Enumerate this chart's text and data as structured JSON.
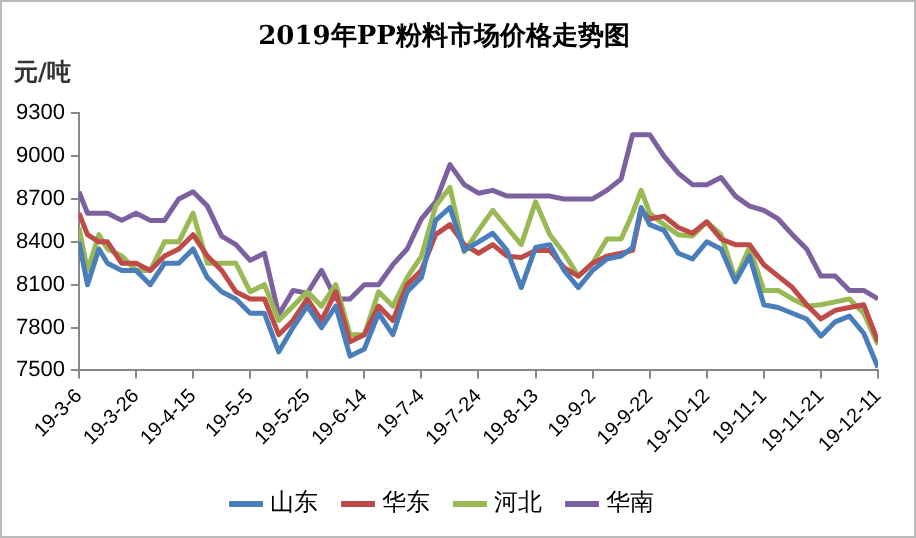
{
  "chart_data": {
    "type": "line",
    "title": "2019年PP粉料市场价格走势图",
    "ylabel": "元/吨",
    "x": [
      "2019-03-06",
      "2019-03-09",
      "2019-03-13",
      "2019-03-16",
      "2019-03-21",
      "2019-03-26",
      "2019-03-31",
      "2019-04-05",
      "2019-04-10",
      "2019-04-15",
      "2019-04-20",
      "2019-04-25",
      "2019-04-30",
      "2019-05-05",
      "2019-05-10",
      "2019-05-15",
      "2019-05-20",
      "2019-05-25",
      "2019-05-30",
      "2019-06-04",
      "2019-06-09",
      "2019-06-14",
      "2019-06-19",
      "2019-06-24",
      "2019-06-29",
      "2019-07-04",
      "2019-07-09",
      "2019-07-14",
      "2019-07-19",
      "2019-07-24",
      "2019-07-29",
      "2019-08-03",
      "2019-08-08",
      "2019-08-13",
      "2019-08-18",
      "2019-08-23",
      "2019-08-28",
      "2019-09-02",
      "2019-09-07",
      "2019-09-12",
      "2019-09-16",
      "2019-09-19",
      "2019-09-22",
      "2019-09-27",
      "2019-10-02",
      "2019-10-07",
      "2019-10-12",
      "2019-10-17",
      "2019-10-22",
      "2019-10-27",
      "2019-11-01",
      "2019-11-06",
      "2019-11-11",
      "2019-11-16",
      "2019-11-21",
      "2019-11-26",
      "2019-12-01",
      "2019-12-06",
      "2019-12-11"
    ],
    "series": [
      {
        "name": "山东",
        "color": "#4a7ebb",
        "values": [
          8400,
          8100,
          8350,
          8250,
          8200,
          8200,
          8100,
          8250,
          8250,
          8350,
          8150,
          8050,
          8000,
          7900,
          7900,
          7630,
          7800,
          7950,
          7800,
          7950,
          7600,
          7650,
          7900,
          7750,
          8050,
          8150,
          8550,
          8640,
          8340,
          8400,
          8460,
          8340,
          8080,
          8360,
          8380,
          8200,
          8080,
          8200,
          8280,
          8300,
          8360,
          8640,
          8520,
          8480,
          8320,
          8280,
          8400,
          8350,
          8120,
          8300,
          7960,
          7940,
          7900,
          7860,
          7740,
          7840,
          7880,
          7760,
          7520
        ]
      },
      {
        "name": "华东",
        "color": "#be4b48",
        "values": [
          8600,
          8450,
          8400,
          8400,
          8250,
          8250,
          8200,
          8300,
          8350,
          8450,
          8300,
          8200,
          8050,
          8000,
          8000,
          7750,
          7850,
          8000,
          7850,
          8050,
          7700,
          7750,
          7950,
          7850,
          8100,
          8200,
          8450,
          8520,
          8380,
          8320,
          8380,
          8300,
          8290,
          8340,
          8340,
          8220,
          8160,
          8250,
          8300,
          8320,
          8340,
          8620,
          8560,
          8580,
          8500,
          8460,
          8540,
          8420,
          8380,
          8380,
          8240,
          8160,
          8080,
          7960,
          7860,
          7920,
          7940,
          7960,
          7700
        ]
      },
      {
        "name": "河北",
        "color": "#98b954",
        "values": [
          8500,
          8200,
          8450,
          8350,
          8300,
          8200,
          8200,
          8400,
          8400,
          8600,
          8250,
          8250,
          8250,
          8050,
          8100,
          7850,
          7950,
          8050,
          7950,
          8100,
          7750,
          7750,
          8050,
          7950,
          8150,
          8300,
          8650,
          8780,
          8330,
          8480,
          8620,
          8500,
          8380,
          8680,
          8450,
          8320,
          8160,
          8250,
          8420,
          8420,
          8600,
          8760,
          8600,
          8520,
          8450,
          8440,
          8540,
          8450,
          8140,
          8360,
          8060,
          8060,
          8000,
          7950,
          7960,
          7980,
          8000,
          7900,
          7680
        ]
      },
      {
        "name": "华南",
        "color": "#7d60a0",
        "values": [
          8750,
          8600,
          8600,
          8600,
          8550,
          8600,
          8550,
          8550,
          8700,
          8750,
          8650,
          8440,
          8380,
          8270,
          8320,
          7890,
          8060,
          8040,
          8200,
          8000,
          8000,
          8100,
          8100,
          8240,
          8350,
          8560,
          8680,
          8940,
          8800,
          8740,
          8760,
          8720,
          8720,
          8720,
          8720,
          8700,
          8700,
          8700,
          8760,
          8840,
          9150,
          9150,
          9150,
          9000,
          8880,
          8800,
          8800,
          8850,
          8720,
          8650,
          8620,
          8560,
          8450,
          8350,
          8160,
          8160,
          8060,
          8060,
          8000
        ]
      }
    ],
    "xlim": [
      "2019-03-06",
      "2019-12-11"
    ],
    "xticks": [
      {
        "value": "2019-03-06",
        "label": "19-3-6"
      },
      {
        "value": "2019-03-26",
        "label": "19-3-26"
      },
      {
        "value": "2019-04-15",
        "label": "19-4-15"
      },
      {
        "value": "2019-05-05",
        "label": "19-5-5"
      },
      {
        "value": "2019-05-25",
        "label": "19-5-25"
      },
      {
        "value": "2019-06-14",
        "label": "19-6-14"
      },
      {
        "value": "2019-07-04",
        "label": "19-7-4"
      },
      {
        "value": "2019-07-24",
        "label": "19-7-24"
      },
      {
        "value": "2019-08-13",
        "label": "19-8-13"
      },
      {
        "value": "2019-09-02",
        "label": "19-9-2"
      },
      {
        "value": "2019-09-22",
        "label": "19-9-22"
      },
      {
        "value": "2019-10-12",
        "label": "19-10-12"
      },
      {
        "value": "2019-11-01",
        "label": "19-11-1"
      },
      {
        "value": "2019-11-21",
        "label": "19-11-21"
      },
      {
        "value": "2019-12-11",
        "label": "19-12-11"
      }
    ],
    "ylim": [
      7500,
      9300
    ],
    "yticks": [
      7500,
      7800,
      8100,
      8400,
      8700,
      9000,
      9300
    ],
    "grid": false,
    "legend": "bottom",
    "marker": "none",
    "line_style": "solid"
  }
}
